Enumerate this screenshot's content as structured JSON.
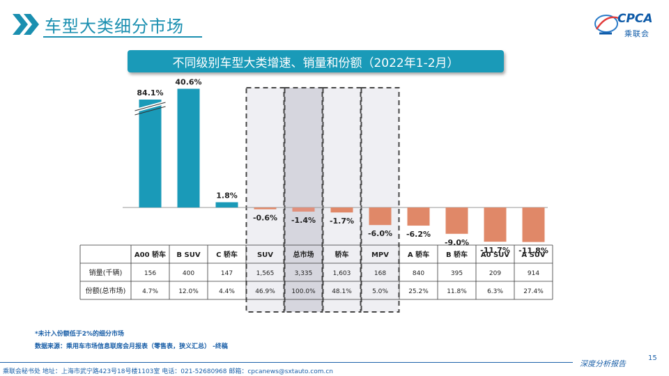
{
  "header": {
    "title": "车型大类细分市场",
    "logo_text": "CPCA",
    "logo_sub": "乘联会"
  },
  "chart_title": "不同级别车型大类增速、销量和份额（2022年1-2月）",
  "chart_data": {
    "type": "bar",
    "categories": [
      "A00 轿车",
      "B SUV",
      "C 轿车",
      "SUV",
      "总市场",
      "轿车",
      "MPV",
      "A 轿车",
      "B 轿车",
      "A0 SUV",
      "A SUV"
    ],
    "values": [
      84.1,
      40.6,
      1.8,
      -0.6,
      -1.4,
      -1.7,
      -6.0,
      -6.2,
      -9.0,
      -11.7,
      -11.8
    ],
    "value_labels": [
      "84.1%",
      "40.6%",
      "1.8%",
      "-0.6%",
      "-1.4%",
      "-1.7%",
      "-6.0%",
      "-6.2%",
      "-9.0%",
      "-11.7%",
      "-11.8%"
    ],
    "highlighted": [
      "SUV",
      "总市场",
      "轿车",
      "MPV"
    ],
    "axis_break": "A00 轿车",
    "colors": {
      "positive": "#1a9ab8",
      "negative": "#e08868",
      "total_negative": "#e0907c",
      "highlight_bg": "#efeff3",
      "total_bg": "#d6d6de"
    },
    "table": {
      "row_labels": [
        "销量(千辆)",
        "份额(总市场)"
      ],
      "rows": [
        [
          "156",
          "400",
          "147",
          "1,565",
          "3,335",
          "1,603",
          "168",
          "840",
          "395",
          "209",
          "914"
        ],
        [
          "4.7%",
          "12.0%",
          "4.4%",
          "46.9%",
          "100.0%",
          "48.1%",
          "5.0%",
          "25.2%",
          "11.8%",
          "6.3%",
          "27.4%"
        ]
      ]
    }
  },
  "notes": {
    "note1": "*未计入份额低于2%的细分市场",
    "note2": "数据来源：乘用车市场信息联席会月报表（零售表，狭义汇总） -终稿"
  },
  "footer": {
    "address": "乘联会秘书处   地址：上海市武宁路423号18号楼1103室   电话：021-52680968   邮箱：cpcanews@sxtauto.com.cn",
    "tag": "深度分析报告",
    "page_number": "15"
  }
}
